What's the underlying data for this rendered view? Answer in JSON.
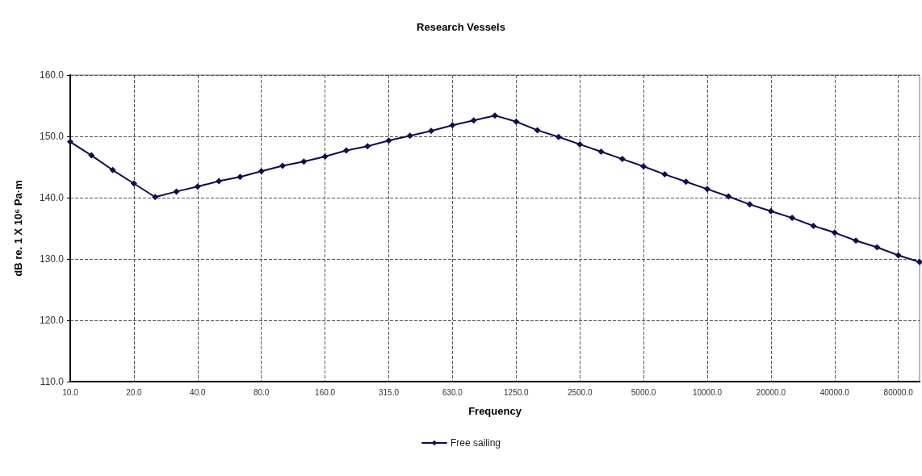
{
  "chart_data": {
    "type": "line",
    "title": "Research Vessels",
    "xlabel": "Frequency",
    "ylabel": "dB re. 1 X 10⁶ Pa·m",
    "categories": [
      "10.0",
      null,
      null,
      "20.0",
      null,
      null,
      "40.0",
      null,
      null,
      "80.0",
      null,
      null,
      "160.0",
      null,
      null,
      "315.0",
      null,
      null,
      "630.0",
      null,
      null,
      "1250.0",
      null,
      null,
      "2500.0",
      null,
      null,
      "5000.0",
      null,
      null,
      "10000.0",
      null,
      null,
      "20000.0",
      null,
      null,
      "40000.0",
      null,
      null,
      "80000.0",
      null
    ],
    "series": [
      {
        "name": "Free sailing",
        "color": "#0b0b4f",
        "values": [
          149.1,
          146.9,
          144.5,
          142.3,
          140.1,
          141.0,
          141.8,
          142.7,
          143.4,
          144.3,
          145.2,
          145.9,
          146.7,
          147.7,
          148.4,
          149.3,
          150.1,
          150.9,
          151.8,
          152.6,
          153.4,
          152.4,
          151.0,
          149.9,
          148.7,
          147.5,
          146.3,
          145.1,
          143.8,
          142.6,
          141.4,
          140.2,
          138.9,
          137.8,
          136.7,
          135.4,
          134.3,
          133.0,
          131.9,
          130.6,
          129.5
        ]
      }
    ],
    "ylim": [
      110,
      160
    ],
    "yticks": [
      {
        "value": 110,
        "label": "110.0"
      },
      {
        "value": 120,
        "label": "120.0"
      },
      {
        "value": 130,
        "label": "130.0"
      },
      {
        "value": 140,
        "label": "140.0"
      },
      {
        "value": 150,
        "label": "150.0"
      },
      {
        "value": 160,
        "label": "160.0"
      }
    ],
    "grid": true,
    "legend": "bottom",
    "marker": "diamond",
    "line_style": "solid"
  }
}
